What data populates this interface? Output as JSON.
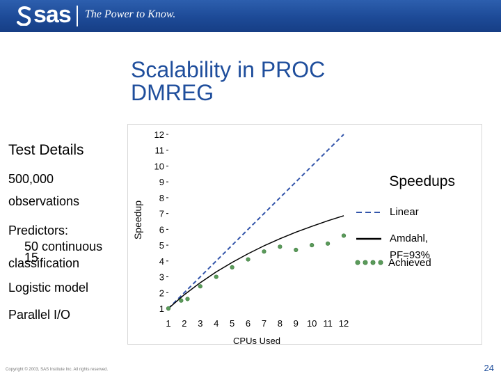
{
  "header": {
    "brand": "sas",
    "tagline": "The Power to Know."
  },
  "slide": {
    "title": "Scalability in PROC DMREG",
    "page_number": "24",
    "copyright": "Copyright © 2003, SAS Institute Inc. All rights reserved."
  },
  "details": {
    "heading": "Test Details",
    "observations_count": "500,000",
    "observations_word": "observations",
    "predictors_label": "Predictors:",
    "continuous": "50 continuous",
    "classification_count": "15",
    "classification_word": "classification",
    "model": "Logistic model",
    "io": "Parallel I/O"
  },
  "colors": {
    "title": "#1f4e9c",
    "header_bg": "#1d4a97",
    "linear": "#3355aa",
    "amdahl": "#000000",
    "achieved": "#5a9a5a"
  },
  "chart_data": {
    "type": "line",
    "legend_title": "Speedups",
    "xlabel": "CPUs Used",
    "ylabel": "Speedup",
    "xlim": [
      1,
      12
    ],
    "ylim": [
      1,
      12
    ],
    "x": [
      1,
      2,
      3,
      4,
      5,
      6,
      7,
      8,
      9,
      10,
      11,
      12
    ],
    "series": [
      {
        "name": "Linear",
        "style": "dashed",
        "values": [
          1,
          2,
          3,
          4,
          5,
          6,
          7,
          8,
          9,
          10,
          11,
          12
        ]
      },
      {
        "name": "Amdahl, PF=93%",
        "style": "solid",
        "values": [
          1,
          1.87,
          2.63,
          3.31,
          3.91,
          4.46,
          4.96,
          5.41,
          5.82,
          6.19,
          6.54,
          6.86
        ]
      },
      {
        "name": "Achieved",
        "style": "markers",
        "x": [
          1,
          1.8,
          2.2,
          3,
          4,
          5,
          6,
          7,
          8,
          9,
          10,
          11,
          12
        ],
        "values": [
          1,
          1.5,
          1.6,
          2.4,
          3,
          3.6,
          4.1,
          4.6,
          4.9,
          4.7,
          5,
          5.1,
          5.6
        ]
      }
    ],
    "legend_position": "right",
    "grid": false
  }
}
